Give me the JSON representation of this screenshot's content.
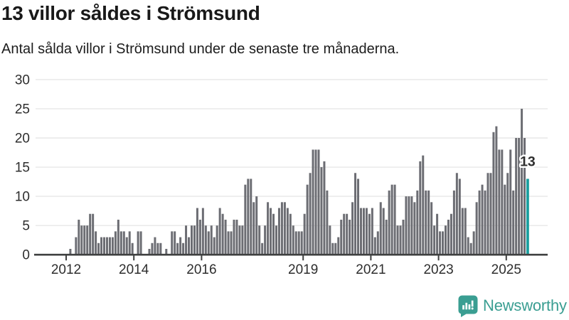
{
  "header": {
    "title": "13 villor såldes i Strömsund",
    "subtitle": "Antal sålda villor i Strömsund under de senaste tre månaderna."
  },
  "chart_data": {
    "type": "bar",
    "title": "13 villor såldes i Strömsund",
    "xlabel": "",
    "ylabel": "",
    "unit": "sålda villor per månad (rullande tre månader)",
    "x_start_month": "2012-01",
    "x_interval": "month",
    "values": [
      0,
      1,
      0,
      3,
      6,
      5,
      5,
      5,
      7,
      7,
      4,
      2,
      3,
      3,
      3,
      3,
      3,
      4,
      6,
      4,
      4,
      3,
      4,
      2,
      0,
      4,
      4,
      0,
      0,
      1,
      2,
      3,
      2,
      2,
      0,
      1,
      0,
      4,
      4,
      2,
      3,
      2,
      5,
      3,
      5,
      5,
      8,
      6,
      8,
      5,
      4,
      5,
      3,
      5,
      8,
      7,
      6,
      4,
      4,
      6,
      6,
      5,
      5,
      12,
      13,
      13,
      9,
      10,
      5,
      2,
      5,
      9,
      8,
      7,
      5,
      8,
      9,
      9,
      8,
      7,
      5,
      4,
      4,
      4,
      7,
      12,
      14,
      18,
      18,
      18,
      15,
      16,
      11,
      5,
      2,
      2,
      3,
      6,
      7,
      7,
      6,
      9,
      14,
      13,
      8,
      8,
      8,
      7,
      8,
      3,
      4,
      9,
      8,
      6,
      11,
      12,
      12,
      5,
      5,
      6,
      10,
      10,
      10,
      9,
      11,
      16,
      17,
      11,
      11,
      9,
      5,
      7,
      4,
      4,
      5,
      6,
      7,
      11,
      14,
      13,
      8,
      8,
      3,
      2,
      4,
      9,
      11,
      12,
      11,
      14,
      14,
      21,
      22,
      18,
      18,
      12,
      14,
      18,
      11,
      20,
      20,
      25,
      20,
      13
    ],
    "highlight": {
      "position": "last",
      "value": 13,
      "label": "13"
    },
    "y_axis": {
      "ticks": [
        0,
        5,
        10,
        15,
        20,
        25,
        30
      ],
      "lim": [
        0,
        30
      ]
    },
    "x_axis": {
      "tick_years": [
        2012,
        2014,
        2016,
        2019,
        2021,
        2023,
        2025
      ]
    },
    "grid": "horizontal",
    "legend": "none",
    "colors": {
      "bar": "#6c6d73",
      "highlight": "#1a9f9f",
      "grid": "#e7e7e7",
      "axis": "#3f4040",
      "tick_label": "#2e2e2e",
      "annotation_text": "#2d2d2d",
      "annotation_halo": "#ffffff"
    }
  },
  "footer": {
    "brand": "Newsworthy",
    "logo_color": "#3a9e92"
  }
}
